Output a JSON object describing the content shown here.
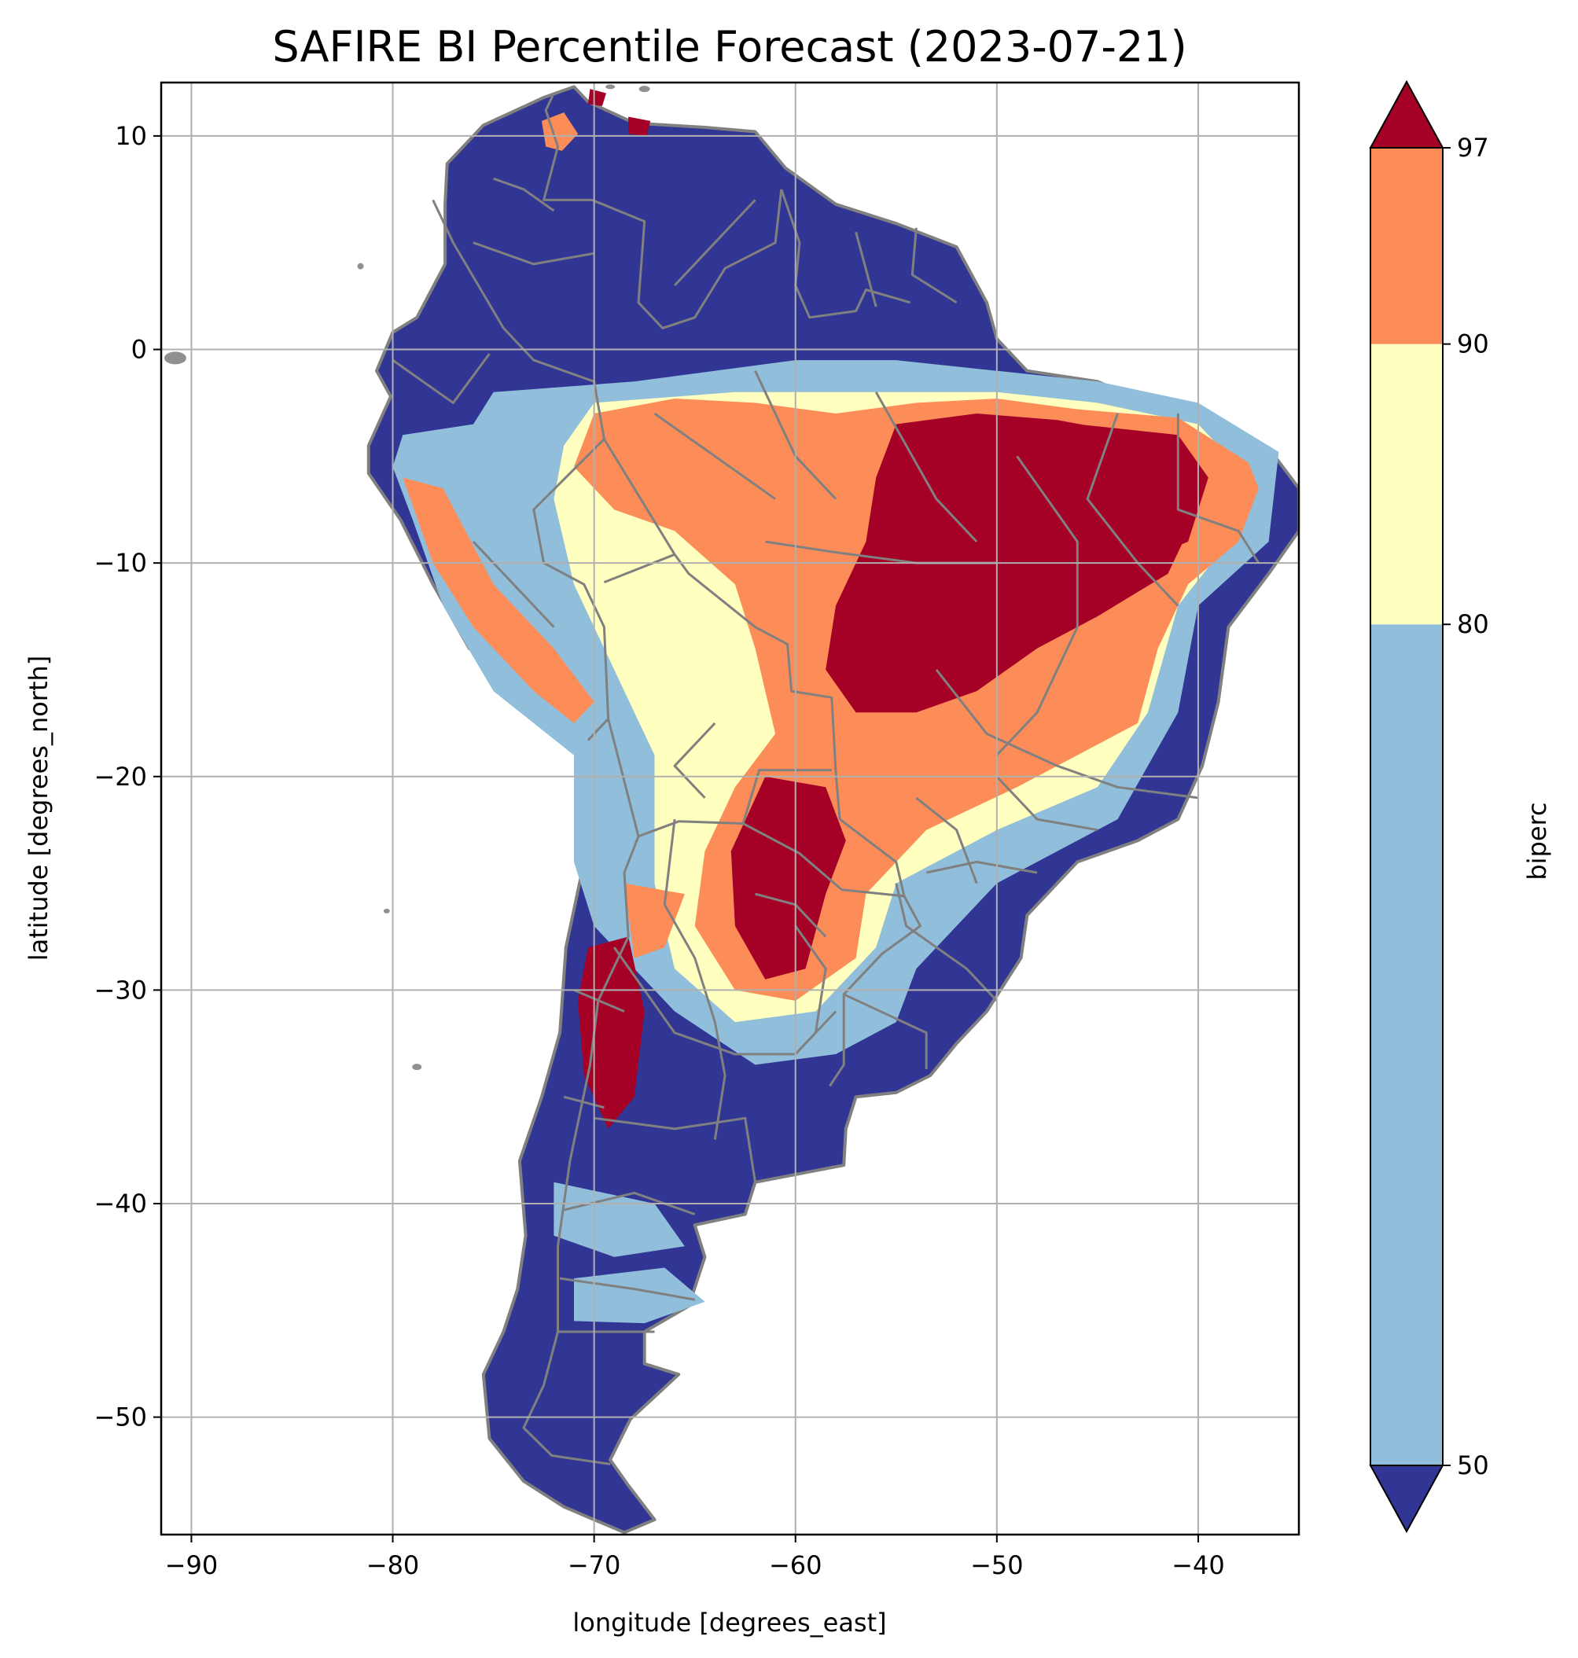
{
  "chart_data": {
    "type": "heatmap",
    "title": "SAFIRE BI Percentile Forecast (2023-07-21)",
    "xlabel": "longitude [degrees_east]",
    "ylabel": "latitude [degrees_north]",
    "xlim": [
      -91.5,
      -35
    ],
    "ylim": [
      -55.5,
      12.5
    ],
    "x_ticks": [
      -90,
      -80,
      -70,
      -60,
      -50,
      -40
    ],
    "x_tick_labels": [
      "−90",
      "−80",
      "−70",
      "−60",
      "−50",
      "−40"
    ],
    "y_ticks": [
      10,
      0,
      -10,
      -20,
      -30,
      -40,
      -50
    ],
    "y_tick_labels": [
      "10",
      "0",
      "−10",
      "−20",
      "−30",
      "−40",
      "−50"
    ],
    "grid": true,
    "colorbar": {
      "label": "biperc",
      "boundaries": [
        50,
        80,
        90,
        97
      ],
      "tick_labels": [
        "50",
        "80",
        "90",
        "97"
      ],
      "colors": {
        "below_50": "#313695",
        "50_80": "#91bfdb",
        "80_90": "#ffffbf",
        "90_97": "#fc8d59",
        "above_97": "#a50026"
      }
    },
    "field_colors": {
      "low": "#313695",
      "moderate": "#91bfdb",
      "high": "#ffffbf",
      "very_high": "#fc8d59",
      "extreme": "#a50026",
      "borders": "#808080",
      "gridlines": "#b0b0b0"
    }
  }
}
